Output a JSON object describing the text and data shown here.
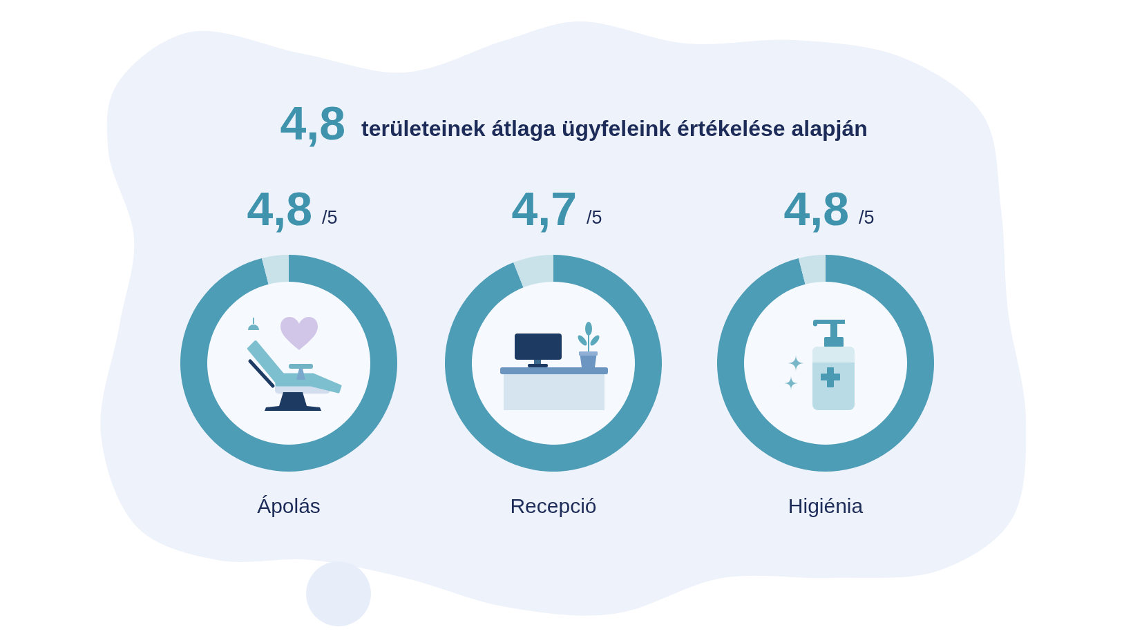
{
  "chart_data": [
    {
      "type": "other",
      "title": "4,8",
      "subtitle": "területeinek átlaga ügyfeleink értékelése alapján"
    },
    {
      "type": "donut",
      "title": "Ápolás",
      "categories": [
        null,
        null
      ],
      "values": [
        4.8,
        0.2
      ],
      "colors": [
        "#4e9db6",
        "#c9e2e9"
      ],
      "value_labels": [
        "4,8",
        null
      ],
      "annotations": [
        "/5"
      ]
    },
    {
      "type": "donut",
      "title": "Recepció",
      "categories": [
        null,
        null
      ],
      "values": [
        4.7,
        0.3
      ],
      "colors": [
        "#4e9db6",
        "#c9e2e9"
      ],
      "value_labels": [
        "4,7",
        null
      ],
      "annotations": [
        "/5"
      ]
    },
    {
      "type": "donut",
      "title": "Higiénia",
      "categories": [
        null,
        null
      ],
      "values": [
        4.8,
        0.2
      ],
      "colors": [
        "#4e9db6",
        "#c9e2e9"
      ],
      "value_labels": [
        "4,8",
        null
      ],
      "annotations": [
        "/5"
      ]
    }
  ]
}
